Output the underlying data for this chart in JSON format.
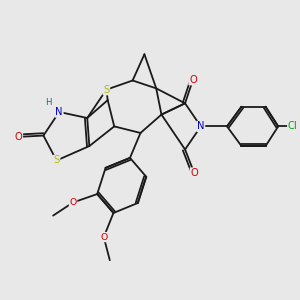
{
  "bg_color": "#e8e8e8",
  "bond_color": "#1a1a1a",
  "bond_lw": 1.3,
  "atom_colors": {
    "S": "#b8b800",
    "N": "#0000cc",
    "O": "#cc0000",
    "Cl": "#00aa00",
    "H": "#007777",
    "C": "#1a1a1a"
  },
  "fs": 7.2,
  "xlim": [
    -0.5,
    10.5
  ],
  "ylim": [
    -0.3,
    10.3
  ]
}
